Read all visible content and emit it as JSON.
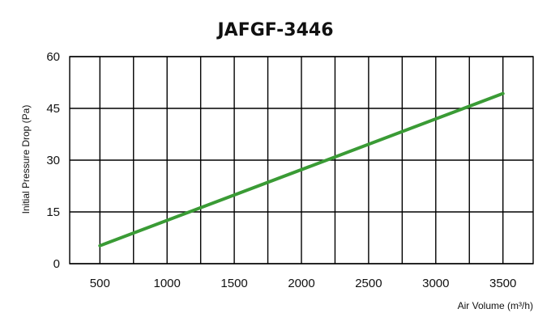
{
  "chart_data": {
    "type": "line",
    "title": "JAFGF-3446",
    "xlabel": "Air Volume (m³/h)",
    "ylabel": "Initial Pressure Drop (Pa)",
    "xlim": [
      275,
      3725
    ],
    "ylim": [
      0,
      60
    ],
    "x_ticks": [
      500,
      1000,
      1500,
      2000,
      2500,
      3000,
      3500
    ],
    "y_ticks": [
      0,
      15,
      30,
      45,
      60
    ],
    "grid": true,
    "series": [
      {
        "color": "#3a9b35",
        "x": [
          500,
          3500
        ],
        "y": [
          5.2,
          49.3
        ]
      }
    ]
  }
}
